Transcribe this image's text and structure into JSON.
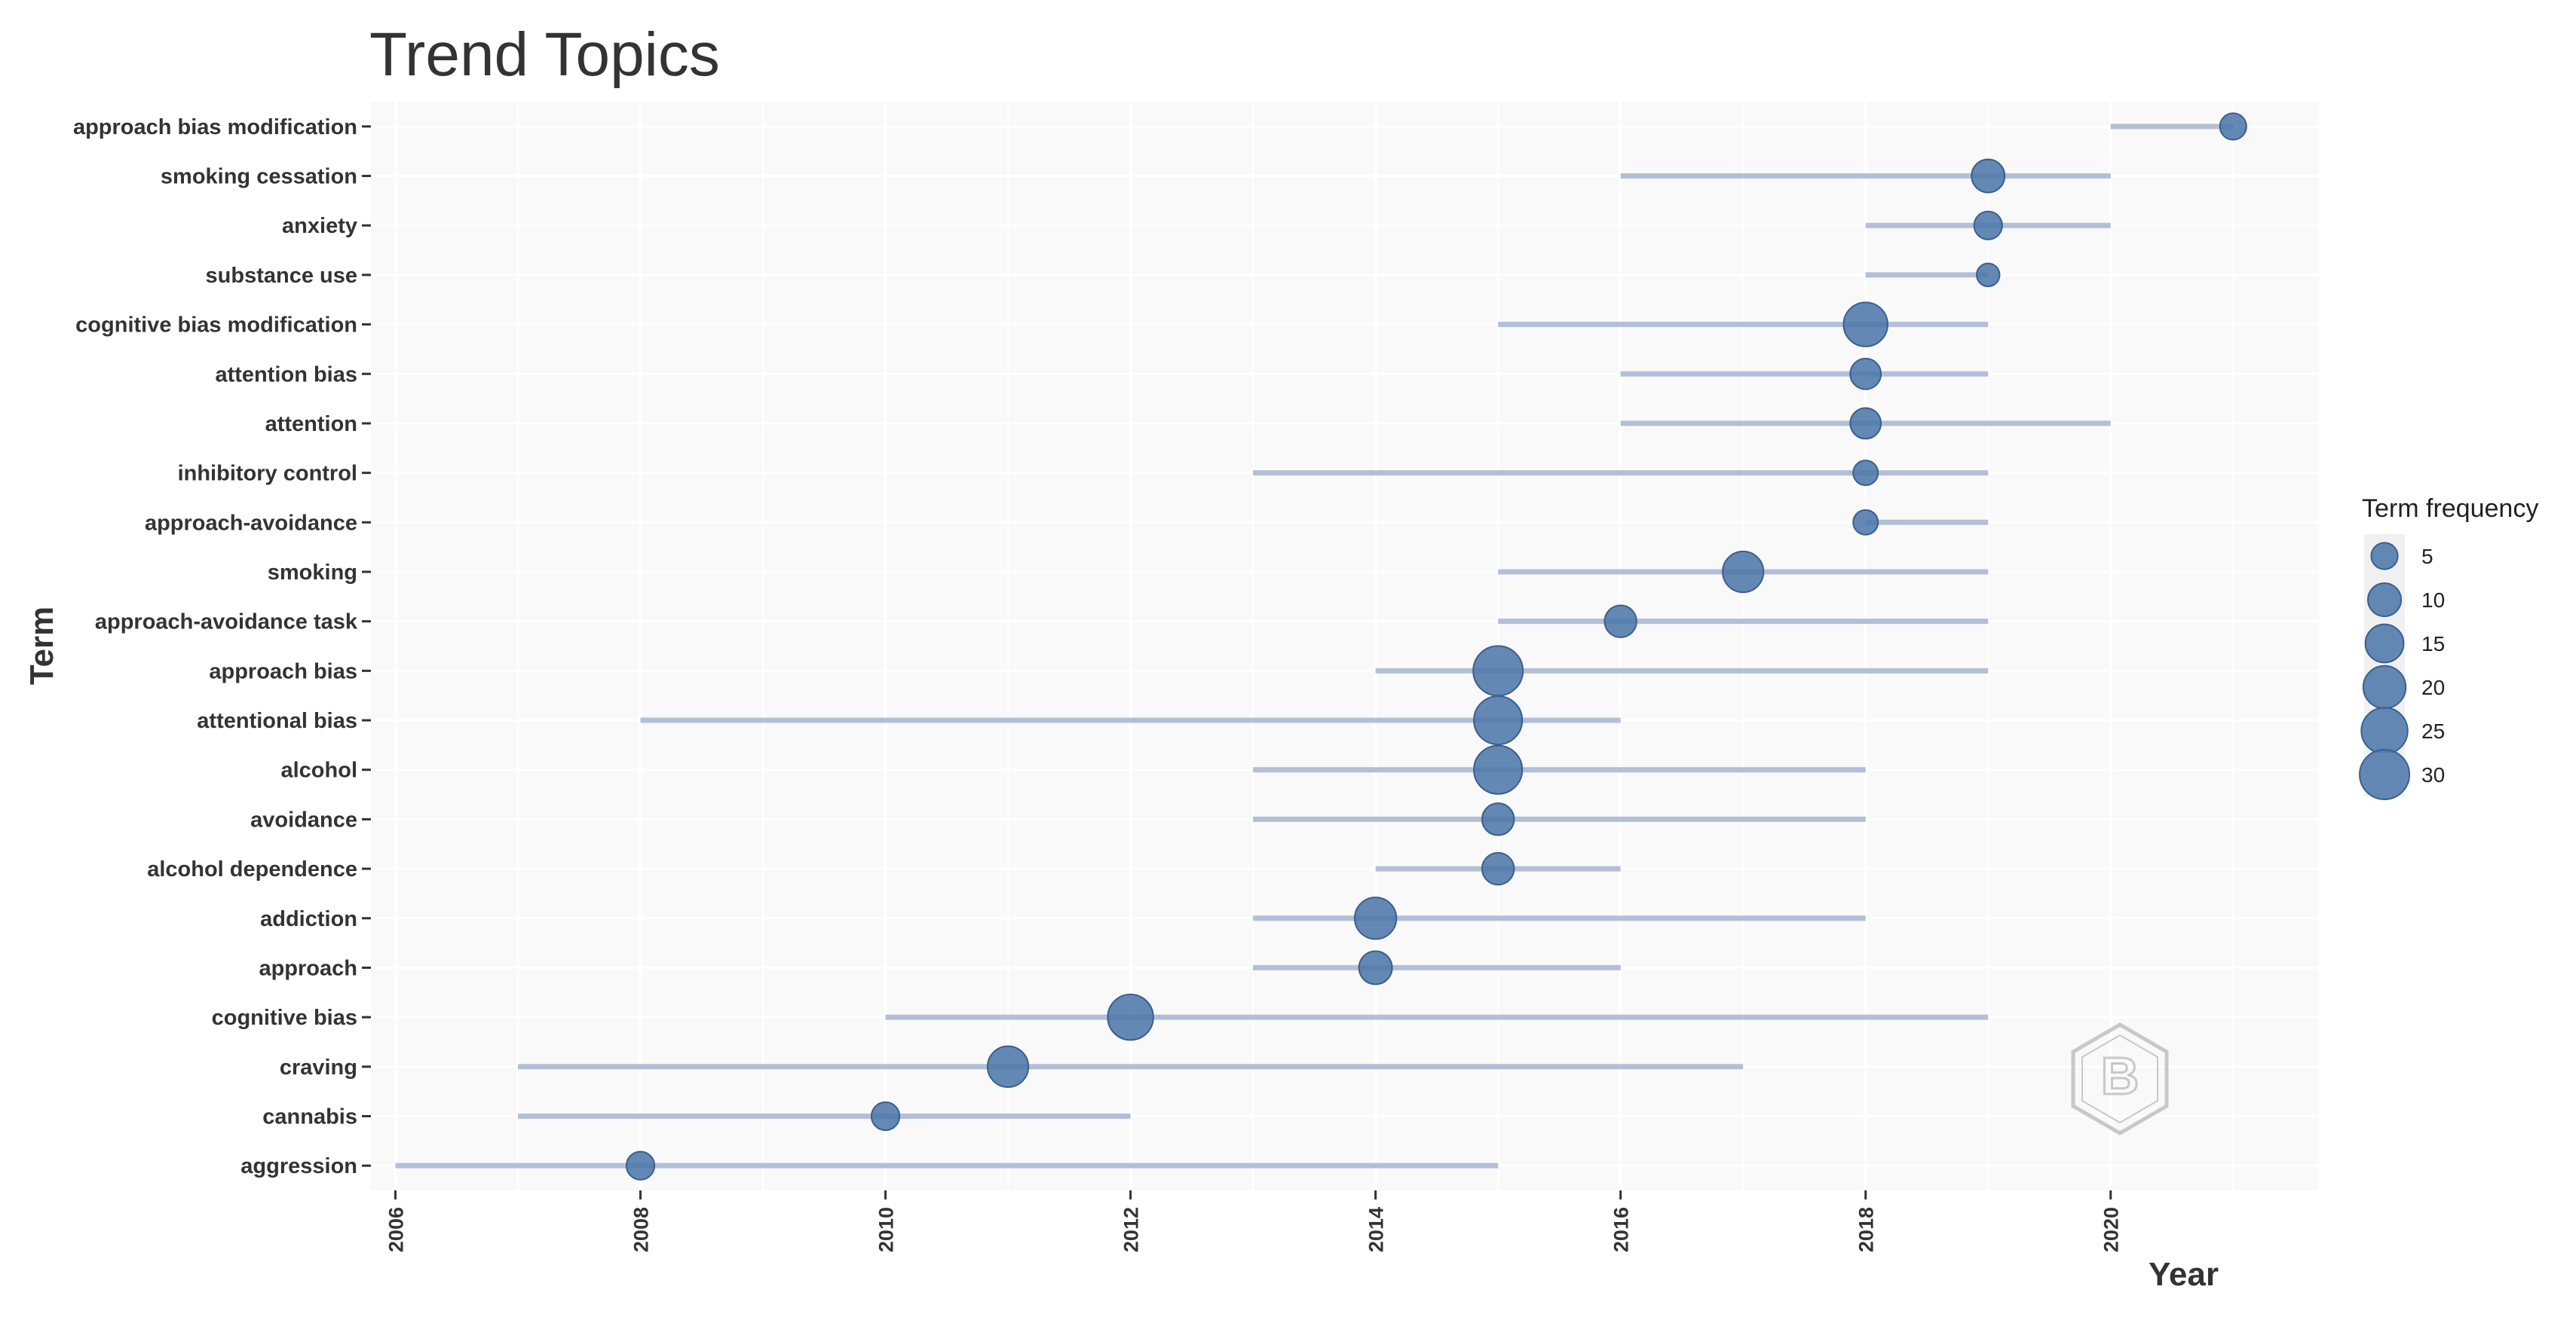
{
  "chart_data": {
    "type": "scatter",
    "title": "Trend Topics",
    "xlabel": "Year",
    "ylabel": "Term",
    "xlim": [
      2005.8,
      2021.7
    ],
    "x_ticks": [
      2006,
      2008,
      2010,
      2012,
      2014,
      2016,
      2018,
      2020
    ],
    "terms": [
      {
        "term": "approach bias modification",
        "start": 2020,
        "end": 2021,
        "median": 2021,
        "freq": 5
      },
      {
        "term": "smoking cessation",
        "start": 2016,
        "end": 2020,
        "median": 2019,
        "freq": 10
      },
      {
        "term": "anxiety",
        "start": 2018,
        "end": 2020,
        "median": 2019,
        "freq": 6
      },
      {
        "term": "substance use",
        "start": 2018,
        "end": 2019,
        "median": 2019,
        "freq": 3
      },
      {
        "term": "cognitive bias modification",
        "start": 2015,
        "end": 2019,
        "median": 2018,
        "freq": 22
      },
      {
        "term": "attention bias",
        "start": 2016,
        "end": 2019,
        "median": 2018,
        "freq": 8
      },
      {
        "term": "attention",
        "start": 2016,
        "end": 2020,
        "median": 2018,
        "freq": 8
      },
      {
        "term": "inhibitory control",
        "start": 2013,
        "end": 2019,
        "median": 2018,
        "freq": 4
      },
      {
        "term": "approach-avoidance",
        "start": 2018,
        "end": 2019,
        "median": 2018,
        "freq": 4
      },
      {
        "term": "smoking",
        "start": 2015,
        "end": 2019,
        "median": 2017,
        "freq": 18
      },
      {
        "term": "approach-avoidance task",
        "start": 2015,
        "end": 2019,
        "median": 2016,
        "freq": 9
      },
      {
        "term": "approach bias",
        "start": 2014,
        "end": 2019,
        "median": 2015,
        "freq": 30
      },
      {
        "term": "attentional bias",
        "start": 2008,
        "end": 2016,
        "median": 2015,
        "freq": 28
      },
      {
        "term": "alcohol",
        "start": 2013,
        "end": 2018,
        "median": 2015,
        "freq": 28
      },
      {
        "term": "avoidance",
        "start": 2013,
        "end": 2018,
        "median": 2015,
        "freq": 9
      },
      {
        "term": "alcohol dependence",
        "start": 2014,
        "end": 2016,
        "median": 2015,
        "freq": 9
      },
      {
        "term": "addiction",
        "start": 2013,
        "end": 2018,
        "median": 2014,
        "freq": 19
      },
      {
        "term": "approach",
        "start": 2013,
        "end": 2016,
        "median": 2014,
        "freq": 10
      },
      {
        "term": "cognitive bias",
        "start": 2010,
        "end": 2019,
        "median": 2012,
        "freq": 24
      },
      {
        "term": "craving",
        "start": 2007,
        "end": 2017,
        "median": 2011,
        "freq": 18
      },
      {
        "term": "cannabis",
        "start": 2007,
        "end": 2012,
        "median": 2010,
        "freq": 6
      },
      {
        "term": "aggression",
        "start": 2006,
        "end": 2015,
        "median": 2008,
        "freq": 6
      }
    ],
    "legend": {
      "title": "Term frequency",
      "position": "right",
      "values": [
        5,
        10,
        15,
        20,
        25,
        30
      ]
    }
  },
  "colors": {
    "point": "#4a74a8",
    "segment": "#b3bfd8",
    "panel": "#f9f9f9",
    "grid": "#ffffff",
    "text": "#333333",
    "legend_key": "#f0f0f0",
    "logo": "#c8c8c8"
  },
  "watermark": {
    "icon": "hexagon-logo-icon",
    "text": "B"
  }
}
